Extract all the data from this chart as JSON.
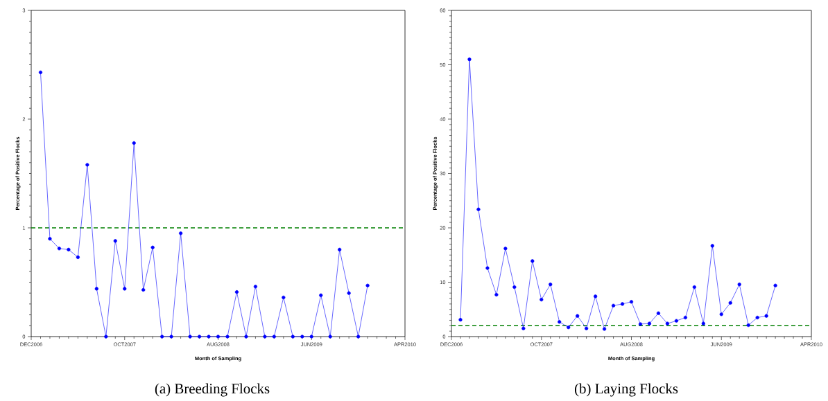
{
  "chart_data": [
    {
      "type": "line",
      "title": "(a) Breeding Flocks",
      "xlabel": "Month of Sampling",
      "ylabel": "Percentage of Positive Flocks",
      "x": [
        "2007-01",
        "2007-02",
        "2007-03",
        "2007-04",
        "2007-05",
        "2007-06",
        "2007-07",
        "2007-08",
        "2007-09",
        "2007-10",
        "2007-11",
        "2007-12",
        "2008-01",
        "2008-02",
        "2008-03",
        "2008-04",
        "2008-05",
        "2008-06",
        "2008-07",
        "2008-08",
        "2008-09",
        "2008-10",
        "2008-11",
        "2008-12",
        "2009-01",
        "2009-02",
        "2009-03",
        "2009-04",
        "2009-05",
        "2009-06",
        "2009-07",
        "2009-08",
        "2009-09",
        "2009-10",
        "2009-11",
        "2009-12"
      ],
      "values": [
        2.43,
        0.9,
        0.81,
        0.8,
        0.73,
        1.58,
        0.44,
        0,
        0.88,
        0.44,
        1.78,
        0.43,
        0.82,
        0,
        0,
        0.95,
        0,
        0,
        0,
        0,
        0,
        0.41,
        0,
        0.46,
        0,
        0,
        0.36,
        0,
        0,
        0,
        0.38,
        0,
        0.8,
        0.4,
        0,
        0.47
      ],
      "color": "#0000ff",
      "marker": "circle",
      "line_style": "solid",
      "xlim": [
        "2006-12",
        "2010-04"
      ],
      "xticks": [
        {
          "value": "2006-12",
          "label": "DEC2006"
        },
        {
          "value": "2007-10",
          "label": "OCT2007"
        },
        {
          "value": "2008-08",
          "label": "AUG2008"
        },
        {
          "value": "2009-06",
          "label": "JUN2009"
        },
        {
          "value": "2010-04",
          "label": "APR2010"
        }
      ],
      "ylim": [
        0,
        3
      ],
      "yticks": [
        0,
        1,
        2,
        3
      ],
      "ref_lines": [
        {
          "axis": "y",
          "value": 1,
          "color": "#008000",
          "line_style": "dashed"
        }
      ]
    },
    {
      "type": "line",
      "title": "(b) Laying Flocks",
      "xlabel": "Month of Sampling",
      "ylabel": "Percentage of Positive Flocks",
      "x": [
        "2007-01",
        "2007-02",
        "2007-03",
        "2007-04",
        "2007-05",
        "2007-06",
        "2007-07",
        "2007-08",
        "2007-09",
        "2007-10",
        "2007-11",
        "2007-12",
        "2008-01",
        "2008-02",
        "2008-03",
        "2008-04",
        "2008-05",
        "2008-06",
        "2008-07",
        "2008-08",
        "2008-09",
        "2008-10",
        "2008-11",
        "2008-12",
        "2009-01",
        "2009-02",
        "2009-03",
        "2009-04",
        "2009-05",
        "2009-06",
        "2009-07",
        "2009-08",
        "2009-09",
        "2009-10",
        "2009-11",
        "2009-12"
      ],
      "values": [
        3.1,
        51,
        23.4,
        12.6,
        7.7,
        16.2,
        9.1,
        1.5,
        13.9,
        6.8,
        9.6,
        2.7,
        1.7,
        3.8,
        1.5,
        7.4,
        1.4,
        5.7,
        6,
        6.4,
        2.3,
        2.4,
        4.3,
        2.4,
        2.9,
        3.5,
        9.1,
        2.4,
        16.7,
        4.1,
        6.2,
        9.6,
        2.1,
        3.5,
        3.8,
        9.4
      ],
      "color": "#0000ff",
      "marker": "circle",
      "line_style": "solid",
      "xlim": [
        "2006-12",
        "2010-04"
      ],
      "xticks": [
        {
          "value": "2006-12",
          "label": "DEC2006"
        },
        {
          "value": "2007-10",
          "label": "OCT2007"
        },
        {
          "value": "2008-08",
          "label": "AUG2008"
        },
        {
          "value": "2009-06",
          "label": "JUN2009"
        },
        {
          "value": "2010-04",
          "label": "APR2010"
        }
      ],
      "ylim": [
        0,
        60
      ],
      "yticks": [
        0,
        10,
        20,
        30,
        40,
        50,
        60
      ],
      "ref_lines": [
        {
          "axis": "y",
          "value": 2,
          "color": "#008000",
          "line_style": "dashed"
        }
      ]
    }
  ]
}
